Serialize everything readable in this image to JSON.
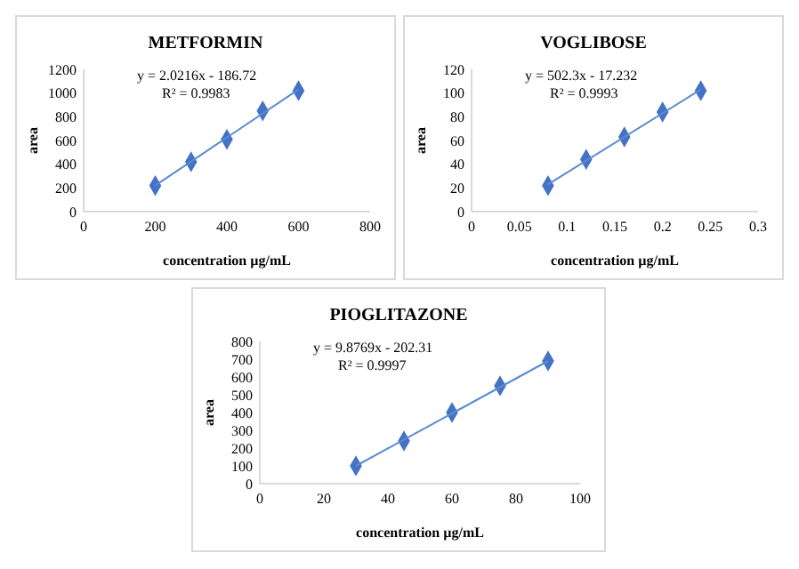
{
  "chart_data": [
    {
      "type": "scatter",
      "title": "METFORMIN",
      "xlabel": "concentration µg/mL",
      "ylabel": "area",
      "xlim": [
        0,
        800
      ],
      "xticks": [
        0,
        200,
        400,
        600,
        800
      ],
      "ylim": [
        0,
        1200
      ],
      "yticks": [
        0,
        200,
        400,
        600,
        800,
        1000,
        1200
      ],
      "grid": false,
      "annotations": [
        "y = 2.0216x - 186.72",
        "R² = 0.9983"
      ],
      "series": [
        {
          "type": "scatter",
          "marker": "diamond",
          "color": "#4472c4",
          "x": [
            200,
            300,
            400,
            500,
            600
          ],
          "values": [
            220,
            420,
            610,
            850,
            1020
          ]
        },
        {
          "type": "line",
          "marker": "none",
          "color": "#5b8bd0",
          "x": [
            200,
            600
          ],
          "values": [
            220,
            1030
          ]
        }
      ]
    },
    {
      "type": "scatter",
      "title": "VOGLIBOSE",
      "xlabel": "concentration µg/mL",
      "ylabel": "area",
      "xlim": [
        0,
        0.3
      ],
      "xticks": [
        0,
        0.05,
        0.1,
        0.15,
        0.2,
        0.25,
        0.3
      ],
      "ylim": [
        0,
        120
      ],
      "yticks": [
        0,
        20,
        40,
        60,
        80,
        100,
        120
      ],
      "grid": false,
      "annotations": [
        "y = 502.3x - 17.232",
        "R² = 0.9993"
      ],
      "series": [
        {
          "type": "scatter",
          "marker": "diamond",
          "color": "#4472c4",
          "x": [
            0.08,
            0.12,
            0.16,
            0.2,
            0.24
          ],
          "values": [
            22,
            44,
            63,
            84,
            102
          ]
        },
        {
          "type": "line",
          "marker": "none",
          "color": "#5b8bd0",
          "x": [
            0.08,
            0.24
          ],
          "values": [
            23,
            103
          ]
        }
      ]
    },
    {
      "type": "scatter",
      "title": "PIOGLITAZONE",
      "xlabel": "concentration µg/mL",
      "ylabel": "area",
      "xlim": [
        0,
        100
      ],
      "xticks": [
        0,
        20,
        40,
        60,
        80,
        100
      ],
      "ylim": [
        0,
        800
      ],
      "yticks": [
        0,
        100,
        200,
        300,
        400,
        500,
        600,
        700,
        800
      ],
      "grid": false,
      "annotations": [
        "y = 9.8769x - 202.31",
        "R² = 0.9997"
      ],
      "series": [
        {
          "type": "scatter",
          "marker": "diamond",
          "color": "#4472c4",
          "x": [
            30,
            45,
            60,
            75,
            90
          ],
          "values": [
            100,
            240,
            400,
            550,
            690
          ]
        },
        {
          "type": "line",
          "marker": "none",
          "color": "#5b8bd0",
          "x": [
            30,
            90
          ],
          "values": [
            100,
            690
          ]
        }
      ]
    }
  ]
}
